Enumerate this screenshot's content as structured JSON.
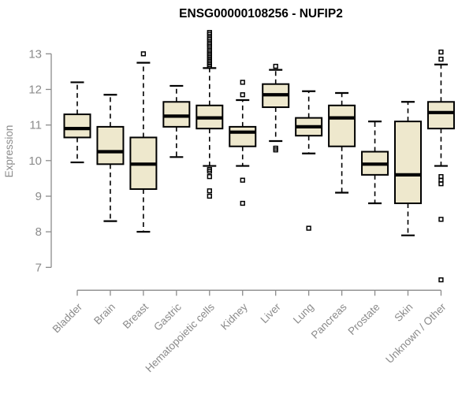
{
  "title": "ENSG00000108256 - NUFIP2",
  "chart_data": {
    "type": "boxplot",
    "title": "ENSG00000108256 - NUFIP2",
    "xlabel": "",
    "ylabel": "Expression",
    "ylim": [
      6.55,
      13.65
    ],
    "yticks": [
      7,
      8,
      9,
      10,
      11,
      12,
      13
    ],
    "grid": false,
    "legend": "none",
    "categories": [
      "Bladder",
      "Brain",
      "Breast",
      "Gastric",
      "Hematopoietic cells",
      "Kidney",
      "Liver",
      "Lung",
      "Pancreas",
      "Prostate",
      "Skin",
      "Unknown / Other"
    ],
    "boxes": [
      {
        "category": "Bladder",
        "whisker_low": 9.95,
        "q1": 10.65,
        "median": 10.9,
        "q3": 11.3,
        "whisker_high": 12.2,
        "outliers": []
      },
      {
        "category": "Brain",
        "whisker_low": 8.3,
        "q1": 9.9,
        "median": 10.25,
        "q3": 10.95,
        "whisker_high": 11.85,
        "outliers": []
      },
      {
        "category": "Breast",
        "whisker_low": 8.0,
        "q1": 9.2,
        "median": 9.9,
        "q3": 10.65,
        "whisker_high": 12.75,
        "outliers": [
          13.0
        ]
      },
      {
        "category": "Gastric",
        "whisker_low": 10.1,
        "q1": 10.95,
        "median": 11.25,
        "q3": 11.65,
        "whisker_high": 12.1,
        "outliers": []
      },
      {
        "category": "Hematopoietic cells",
        "whisker_low": 9.85,
        "q1": 10.9,
        "median": 11.2,
        "q3": 11.55,
        "whisker_high": 12.6,
        "outliers": [
          13.6,
          13.55,
          13.45,
          13.4,
          13.3,
          13.25,
          13.2,
          13.1,
          13.05,
          13.0,
          12.95,
          12.9,
          12.85,
          12.8,
          12.75,
          12.7,
          12.65,
          9.75,
          9.7,
          9.55,
          9.15,
          9.0
        ]
      },
      {
        "category": "Kidney",
        "whisker_low": 9.85,
        "q1": 10.4,
        "median": 10.8,
        "q3": 10.95,
        "whisker_high": 11.7,
        "outliers": [
          12.2,
          11.85,
          9.45,
          8.8
        ]
      },
      {
        "category": "Liver",
        "whisker_low": 10.55,
        "q1": 11.5,
        "median": 11.85,
        "q3": 12.15,
        "whisker_high": 12.55,
        "outliers": [
          12.65,
          10.35,
          10.3
        ]
      },
      {
        "category": "Lung",
        "whisker_low": 10.2,
        "q1": 10.7,
        "median": 10.95,
        "q3": 11.2,
        "whisker_high": 11.95,
        "outliers": [
          8.1
        ]
      },
      {
        "category": "Pancreas",
        "whisker_low": 9.1,
        "q1": 10.4,
        "median": 11.2,
        "q3": 11.55,
        "whisker_high": 11.9,
        "outliers": []
      },
      {
        "category": "Prostate",
        "whisker_low": 8.8,
        "q1": 9.6,
        "median": 9.9,
        "q3": 10.25,
        "whisker_high": 11.1,
        "outliers": []
      },
      {
        "category": "Skin",
        "whisker_low": 7.9,
        "q1": 8.8,
        "median": 9.6,
        "q3": 11.1,
        "whisker_high": 11.65,
        "outliers": []
      },
      {
        "category": "Unknown / Other",
        "whisker_low": 9.85,
        "q1": 10.9,
        "median": 11.35,
        "q3": 11.65,
        "whisker_high": 12.7,
        "outliers": [
          13.05,
          12.85,
          9.55,
          9.45,
          9.35,
          8.35,
          6.65
        ]
      }
    ],
    "colors": {
      "box_fill": "#EEE8CD",
      "box_stroke": "#000000",
      "median": "#000000",
      "whisker": "#000000",
      "axis": "#8B8B8B",
      "tick_label": "#8B8B8B",
      "title": "#000000",
      "background": "#FFFFFF"
    }
  }
}
